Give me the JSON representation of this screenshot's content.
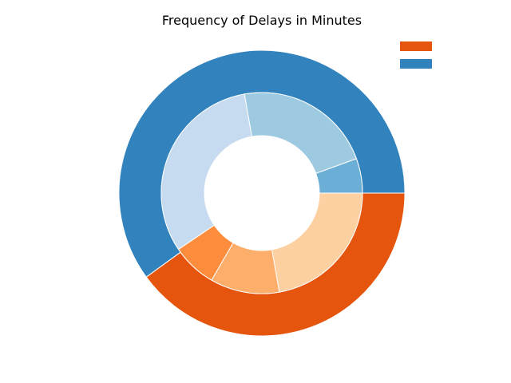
{
  "chart_data": {
    "type": "pie",
    "subtype": "nested-donut",
    "title": "Frequency of Delays in Minutes",
    "legend": {
      "placement": "top-right",
      "entries": [
        {
          "label": "",
          "color": "#e6550d"
        },
        {
          "label": "",
          "color": "#3182bd"
        }
      ]
    },
    "outer_ring": {
      "slices": [
        {
          "label": "",
          "value": 40,
          "color": "#e6550d"
        },
        {
          "label": "",
          "value": 60,
          "color": "#3182bd"
        }
      ]
    },
    "inner_ring": {
      "slices": [
        {
          "label": "",
          "value": 20,
          "color": "#fdd0a2"
        },
        {
          "label": "",
          "value": 10,
          "color": "#fdae6b"
        },
        {
          "label": "",
          "value": 6.5,
          "color": "#fd8d3c"
        },
        {
          "label": "",
          "value": 28.5,
          "color": "#c6dbef"
        },
        {
          "label": "",
          "value": 20,
          "color": "#9ecae1"
        },
        {
          "label": "",
          "value": 5,
          "color": "#6baed6"
        }
      ]
    },
    "start_angle_deg": 0,
    "direction": "clockwise"
  }
}
